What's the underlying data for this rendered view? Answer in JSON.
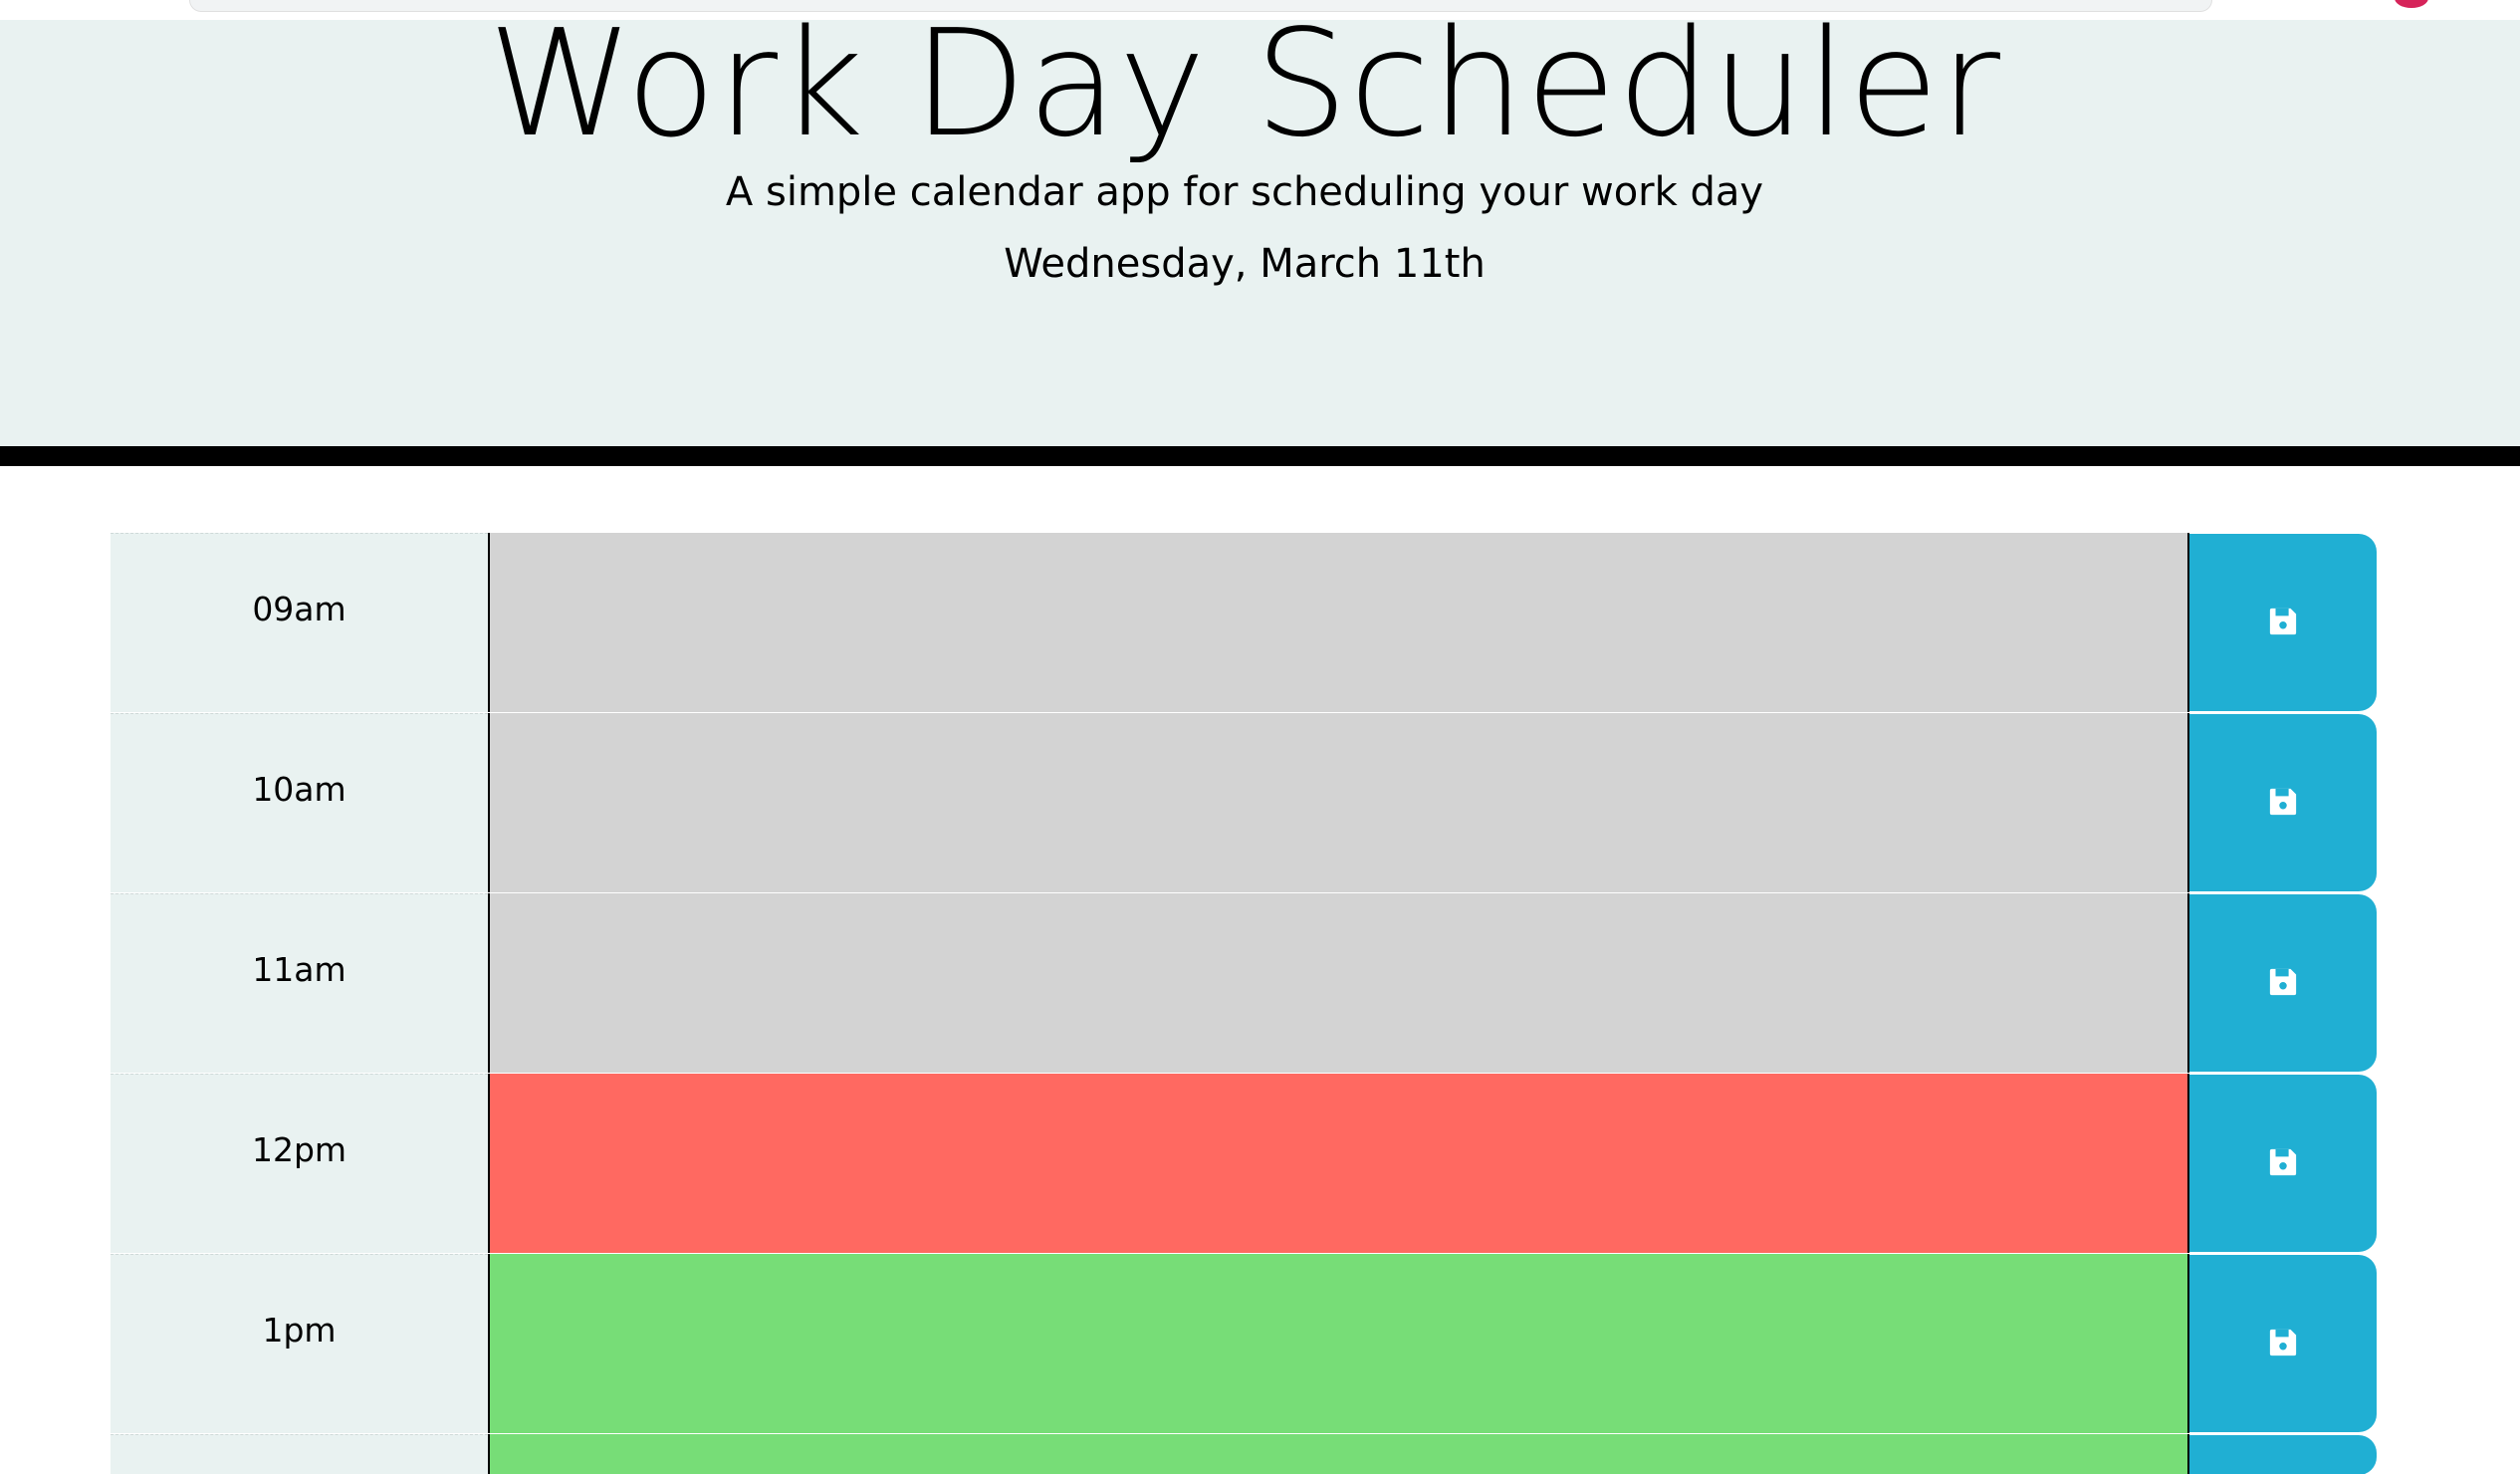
{
  "header": {
    "title": "Work Day Scheduler",
    "lead": "A simple calendar app for scheduling your work day",
    "current_day": "Wednesday, March 11th"
  },
  "colors": {
    "past": "#d3d3d3",
    "present": "#ff6961",
    "future": "#77dd77",
    "save_button": "#20afd3",
    "jumbotron_bg": "#e9f2f1"
  },
  "timeblocks": [
    {
      "hour": "09am",
      "state": "past",
      "text": ""
    },
    {
      "hour": "10am",
      "state": "past",
      "text": ""
    },
    {
      "hour": "11am",
      "state": "past",
      "text": ""
    },
    {
      "hour": "12pm",
      "state": "present",
      "text": ""
    },
    {
      "hour": "1pm",
      "state": "future",
      "text": ""
    },
    {
      "hour": "",
      "state": "future",
      "text": ""
    }
  ],
  "icons": {
    "save": "floppy-disk-icon"
  }
}
